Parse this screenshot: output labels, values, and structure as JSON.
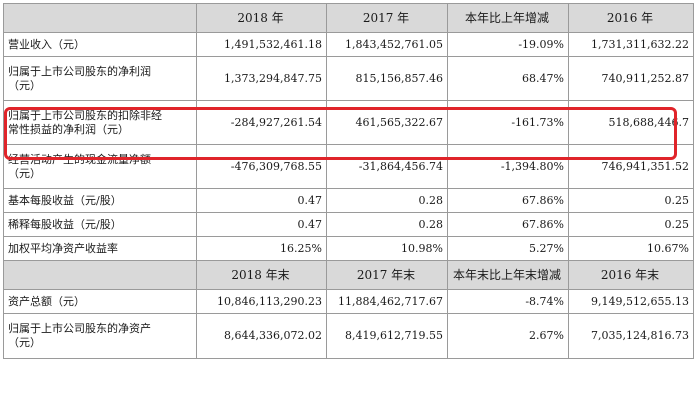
{
  "highlight_color": "#e0242a",
  "header1": [
    "",
    "2018 年",
    "2017 年",
    "本年比上年增减",
    "2016 年"
  ],
  "rows1": [
    {
      "label": "营业收入（元）",
      "v2018": "1,491,532,461.18",
      "v2017": "1,843,452,761.05",
      "change": "-19.09%",
      "v2016": "1,731,311,632.22"
    },
    {
      "label": "归属于上市公司股东的净利润（元）",
      "label_l1": "归属于上市公司股东的净利润",
      "label_l2": "（元）",
      "v2018": "1,373,294,847.75",
      "v2017": "815,156,857.46",
      "change": "68.47%",
      "v2016": "740,911,252.87"
    },
    {
      "label": "归属于上市公司股东的扣除非经常性损益的净利润（元）",
      "label_l1": "归属于上市公司股东的扣除非经",
      "label_l2": "常性损益的净利润（元）",
      "v2018": "-284,927,261.54",
      "v2017": "461,565,322.67",
      "change": "-161.73%",
      "v2016": "518,688,446.7"
    },
    {
      "label": "经营活动产生的现金流量净额（元）",
      "label_l1": "经营活动产生的现金流量净额",
      "label_l2": "（元）",
      "v2018": "-476,309,768.55",
      "v2017": "-31,864,456.74",
      "change": "-1,394.80%",
      "v2016": "746,941,351.52"
    },
    {
      "label": "基本每股收益（元/股）",
      "v2018": "0.47",
      "v2017": "0.28",
      "change": "67.86%",
      "v2016": "0.25"
    },
    {
      "label": "稀释每股收益（元/股）",
      "v2018": "0.47",
      "v2017": "0.28",
      "change": "67.86%",
      "v2016": "0.25"
    },
    {
      "label": "加权平均净资产收益率",
      "v2018": "16.25%",
      "v2017": "10.98%",
      "change": "5.27%",
      "v2016": "10.67%"
    }
  ],
  "header2": [
    "",
    "2018 年末",
    "2017 年末",
    "本年末比上年末增减",
    "2016 年末"
  ],
  "rows2": [
    {
      "label": "资产总额（元）",
      "v2018": "10,846,113,290.23",
      "v2017": "11,884,462,717.67",
      "change": "-8.74%",
      "v2016": "9,149,512,655.13"
    },
    {
      "label": "归属于上市公司股东的净资产（元）",
      "label_l1": "归属于上市公司股东的净资产",
      "label_l2": "（元）",
      "v2018": "8,644,336,072.02",
      "v2017": "8,419,612,719.55",
      "change": "2.67%",
      "v2016": "7,035,124,816.73"
    }
  ]
}
